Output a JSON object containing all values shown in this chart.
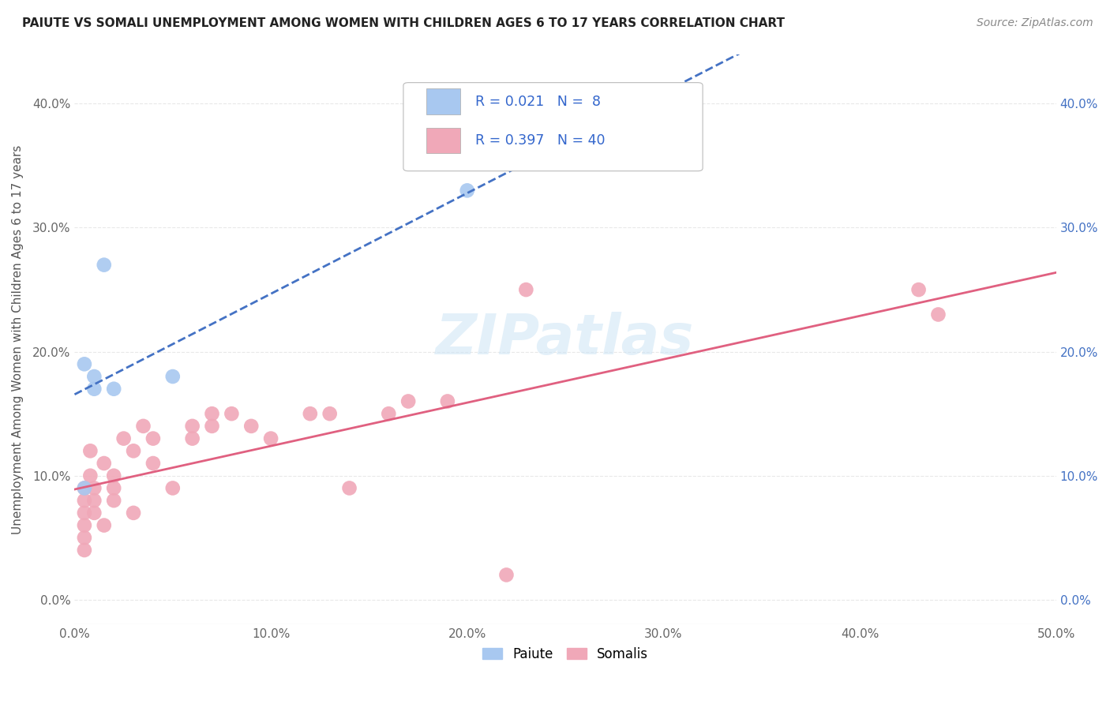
{
  "title": "PAIUTE VS SOMALI UNEMPLOYMENT AMONG WOMEN WITH CHILDREN AGES 6 TO 17 YEARS CORRELATION CHART",
  "source": "Source: ZipAtlas.com",
  "ylabel": "Unemployment Among Women with Children Ages 6 to 17 years",
  "xlim": [
    0.0,
    0.5
  ],
  "ylim": [
    -0.02,
    0.44
  ],
  "x_ticks": [
    0.0,
    0.1,
    0.2,
    0.3,
    0.4,
    0.5
  ],
  "x_tick_labels": [
    "0.0%",
    "10.0%",
    "20.0%",
    "30.0%",
    "40.0%",
    "50.0%"
  ],
  "y_ticks": [
    0.0,
    0.1,
    0.2,
    0.3,
    0.4
  ],
  "y_tick_labels": [
    "0.0%",
    "10.0%",
    "20.0%",
    "30.0%",
    "40.0%"
  ],
  "paiute_color": "#a8c8f0",
  "somali_color": "#f0a8b8",
  "line_paiute_color": "#4472c4",
  "line_somali_color": "#e06080",
  "watermark": "ZIPatlas",
  "paiute_x": [
    0.005,
    0.005,
    0.01,
    0.01,
    0.015,
    0.02,
    0.05,
    0.2
  ],
  "paiute_y": [
    0.19,
    0.09,
    0.17,
    0.18,
    0.27,
    0.17,
    0.18,
    0.33
  ],
  "somali_x": [
    0.005,
    0.005,
    0.005,
    0.005,
    0.005,
    0.005,
    0.008,
    0.008,
    0.01,
    0.01,
    0.01,
    0.015,
    0.015,
    0.02,
    0.02,
    0.02,
    0.025,
    0.03,
    0.03,
    0.035,
    0.04,
    0.04,
    0.05,
    0.06,
    0.06,
    0.07,
    0.07,
    0.08,
    0.09,
    0.1,
    0.12,
    0.13,
    0.14,
    0.16,
    0.17,
    0.19,
    0.22,
    0.23,
    0.43,
    0.44
  ],
  "somali_y": [
    0.05,
    0.04,
    0.07,
    0.06,
    0.09,
    0.08,
    0.1,
    0.12,
    0.09,
    0.07,
    0.08,
    0.11,
    0.06,
    0.08,
    0.09,
    0.1,
    0.13,
    0.12,
    0.07,
    0.14,
    0.11,
    0.13,
    0.09,
    0.14,
    0.13,
    0.15,
    0.14,
    0.15,
    0.14,
    0.13,
    0.15,
    0.15,
    0.09,
    0.15,
    0.16,
    0.16,
    0.02,
    0.25,
    0.25,
    0.23
  ],
  "background_color": "#ffffff",
  "grid_color": "#e8e8e8"
}
